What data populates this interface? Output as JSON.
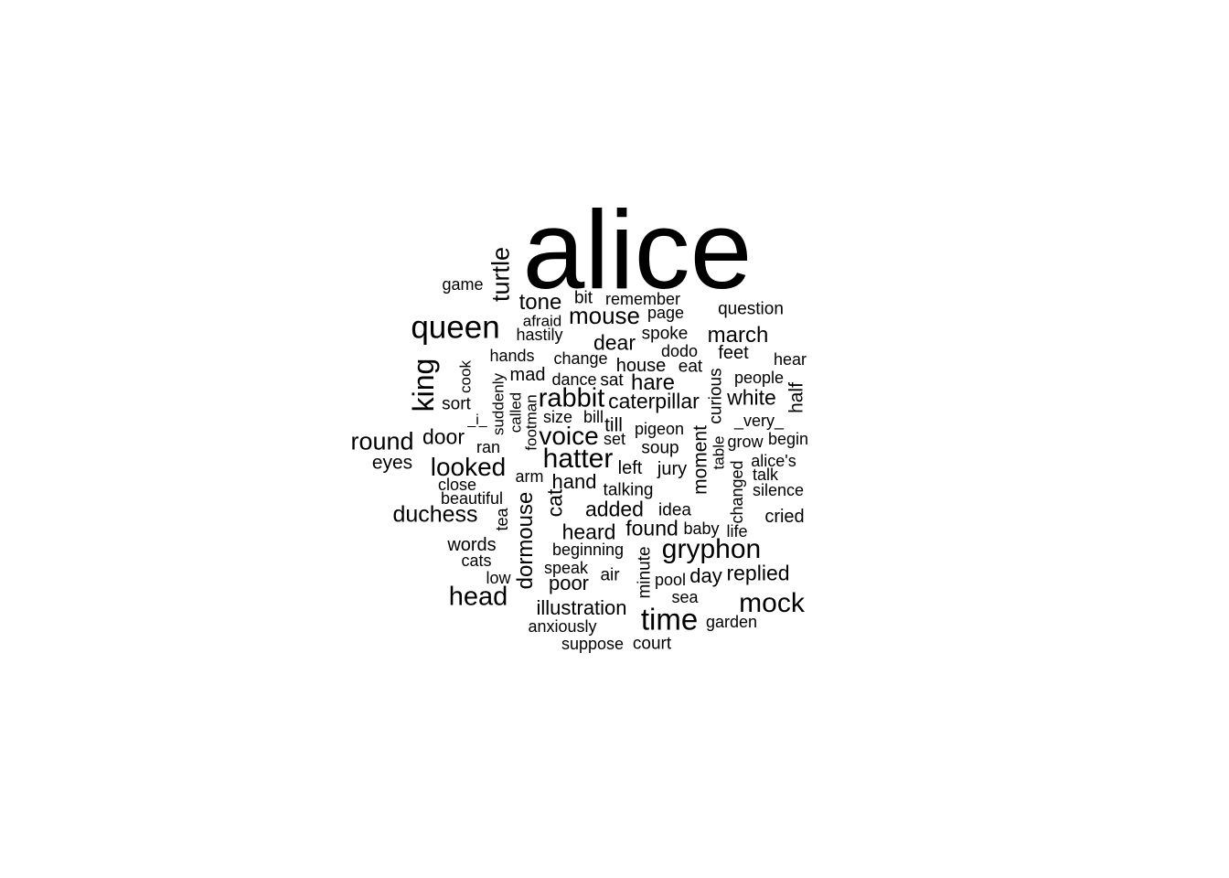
{
  "words": [
    "alice",
    "queen",
    "turtle",
    "game",
    "tone",
    "bit",
    "remember",
    "question",
    "afraid",
    "mouse",
    "page",
    "hastily",
    "spoke",
    "march",
    "dear",
    "dodo",
    "king",
    "cook",
    "hands",
    "change",
    "feet",
    "hear",
    "mad",
    "house",
    "eat",
    "people",
    "sort",
    "suddenly",
    "dance",
    "sat",
    "hare",
    "curious",
    "half",
    "called",
    "rabbit",
    "caterpillar",
    "white",
    "footman",
    "_i_",
    "size",
    "bill",
    "till",
    "_very_",
    "round",
    "door",
    "ran",
    "voice",
    "set",
    "pigeon",
    "moment",
    "begin",
    "soup",
    "grow",
    "table",
    "eyes",
    "hatter",
    "alice's",
    "looked",
    "left",
    "jury",
    "talk",
    "close",
    "arm",
    "hand",
    "changed",
    "silence",
    "beautiful",
    "cat",
    "talking",
    "duchess",
    "tea",
    "added",
    "idea",
    "cried",
    "dormouse",
    "heard",
    "found",
    "baby",
    "life",
    "words",
    "gryphon",
    "beginning",
    "cats",
    "minute",
    "speak",
    "air",
    "replied",
    "low",
    "poor",
    "pool",
    "day",
    "head",
    "sea",
    "mock",
    "illustration",
    "time",
    "garden",
    "anxiously",
    "suppose",
    "court"
  ]
}
